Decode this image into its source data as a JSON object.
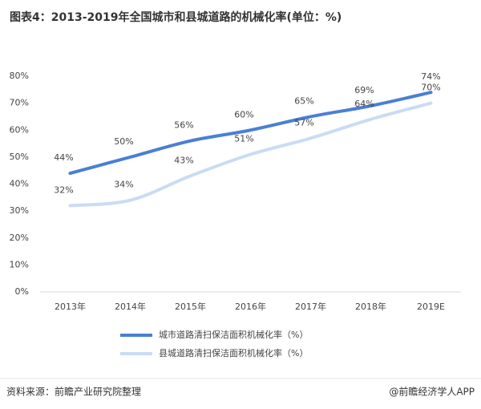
{
  "chart_data": {
    "type": "line",
    "title": "图表4：2013-2019年全国城市和县城道路的机械化率(单位：%)",
    "categories": [
      "2013年",
      "2014年",
      "2015年",
      "2016年",
      "2017年",
      "2018年",
      "2019E"
    ],
    "series": [
      {
        "name": "城市道路清扫保洁面积机械化率（%）",
        "color": "#4a7fd4",
        "values": [
          44,
          50,
          56,
          60,
          65,
          69,
          74
        ],
        "value_labels": [
          "44%",
          "50%",
          "56%",
          "60%",
          "65%",
          "69%",
          "74%"
        ]
      },
      {
        "name": "县城道路清扫保洁面积机械化率（%）",
        "color": "#cadcf4",
        "values": [
          32,
          34,
          43,
          51,
          57,
          64,
          70
        ],
        "value_labels": [
          "32%",
          "34%",
          "43%",
          "51%",
          "57%",
          "64%",
          "70%"
        ]
      }
    ],
    "ylim": [
      0,
      80
    ],
    "yticks": [
      {
        "value": 0,
        "label": "0%"
      },
      {
        "value": 10,
        "label": "10%"
      },
      {
        "value": 20,
        "label": "20%"
      },
      {
        "value": 30,
        "label": "30%"
      },
      {
        "value": 40,
        "label": "40%"
      },
      {
        "value": 50,
        "label": "50%"
      },
      {
        "value": 60,
        "label": "60%"
      },
      {
        "value": 70,
        "label": "70%"
      },
      {
        "value": 80,
        "label": "80%"
      }
    ],
    "grid": false,
    "source": "资料来源：前瞻产业研究院整理",
    "credit": "@前瞻经济学人APP"
  }
}
